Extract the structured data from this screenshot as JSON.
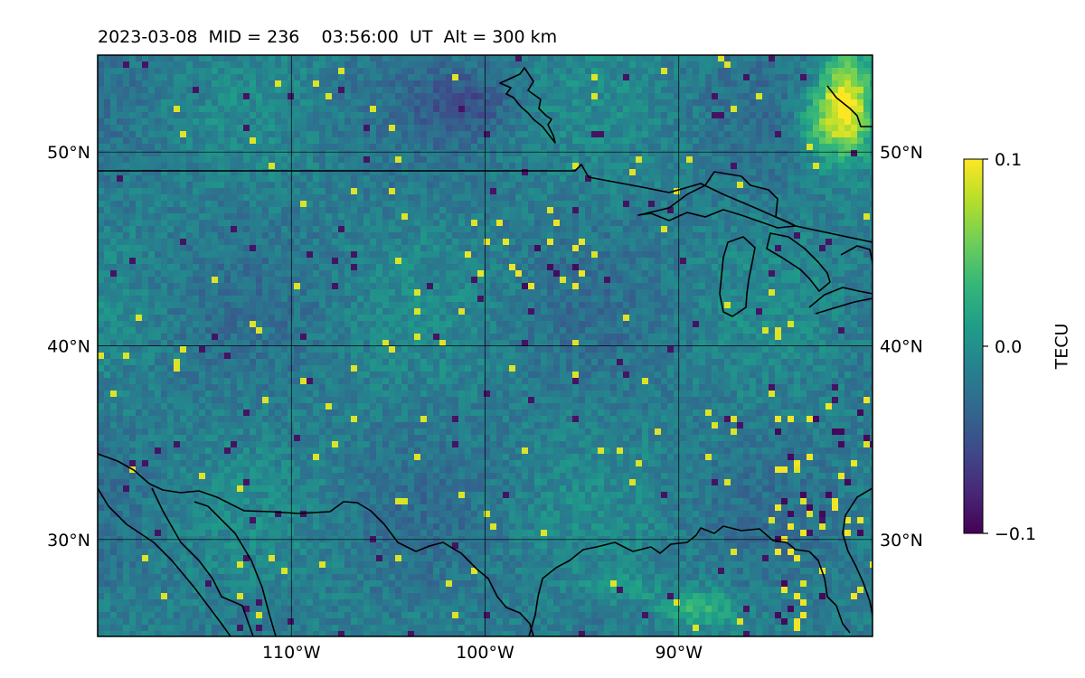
{
  "title": "2023-03-08  MID = 236    03:56:00  UT  Alt = 300 km",
  "map": {
    "extent": {
      "lon": [
        -120,
        -80
      ],
      "lat": [
        25,
        55
      ]
    },
    "gridlines": {
      "lon": [
        {
          "value": -110,
          "label": "110°W"
        },
        {
          "value": -100,
          "label": "100°W"
        },
        {
          "value": -90,
          "label": "90°W"
        }
      ],
      "lat": [
        {
          "value": 30,
          "label": "30°N"
        },
        {
          "value": 40,
          "label": "40°N"
        },
        {
          "value": 50,
          "label": "50°N"
        }
      ]
    }
  },
  "colorbar": {
    "label": "TECU",
    "range": [
      -0.1,
      0.1
    ],
    "ticks": [
      {
        "value": 0.1,
        "label": "0.1"
      },
      {
        "value": 0.0,
        "label": "0.0"
      },
      {
        "value": -0.1,
        "label": "−0.1"
      }
    ],
    "colormap": "viridis"
  },
  "colors": {
    "viridis": [
      "#440154",
      "#482878",
      "#3e4a89",
      "#31688e",
      "#26828e",
      "#1f9e89",
      "#35b779",
      "#6ece58",
      "#b5de2b",
      "#fde725"
    ]
  }
}
